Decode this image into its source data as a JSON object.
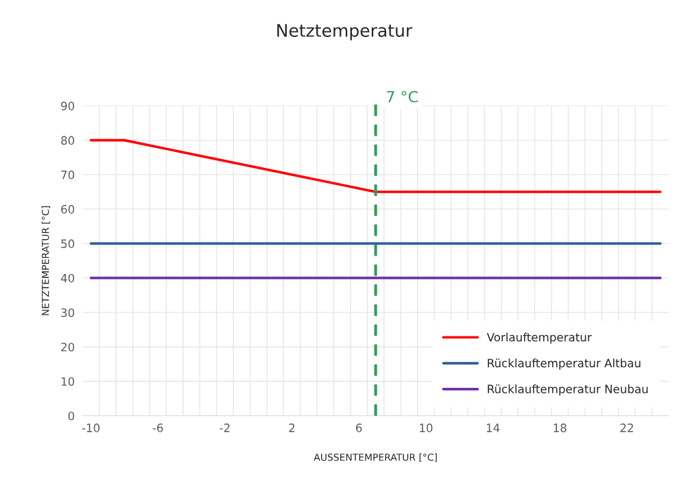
{
  "chart_data": {
    "type": "line",
    "title": "Netztemperatur",
    "xlabel": "AUSSENTEMPERATUR [°C]",
    "ylabel": "NETZTEMPERATUR [°C]",
    "series": [
      {
        "name": "Vorlauftemperatur",
        "color": "#ff0000",
        "x": [
          -10,
          -8,
          7,
          24
        ],
        "values": [
          80,
          80,
          65,
          65
        ]
      },
      {
        "name": "Rücklauftemperatur Altbau",
        "color": "#2f5f98",
        "x": [
          -10,
          24
        ],
        "values": [
          50,
          50
        ]
      },
      {
        "name": "Rücklauftemperatur Neubau",
        "color": "#7030a0",
        "x": [
          -10,
          24
        ],
        "values": [
          40,
          40
        ]
      }
    ],
    "xlim": [
      -10.5,
      24.5
    ],
    "xticks": [
      -10,
      -6,
      -2,
      2,
      6,
      10,
      14,
      18,
      22,
      {
        "value": -9.5,
        "label": null
      },
      {
        "value": -8.5,
        "label": null
      },
      {
        "value": -7.5,
        "label": null
      },
      {
        "value": -6.5,
        "label": null
      },
      {
        "value": -5.5,
        "label": null
      },
      {
        "value": -4.5,
        "label": null
      },
      {
        "value": -3.5,
        "label": null
      },
      {
        "value": -2.5,
        "label": null
      },
      {
        "value": -1.5,
        "label": null
      },
      {
        "value": -0.5,
        "label": null
      },
      {
        "value": 0.5,
        "label": null
      },
      {
        "value": 1.5,
        "label": null
      },
      {
        "value": 2.5,
        "label": null
      },
      {
        "value": 3.5,
        "label": null
      },
      {
        "value": 4.5,
        "label": null
      },
      {
        "value": 5.5,
        "label": null
      },
      {
        "value": 6.5,
        "label": null
      },
      {
        "value": 7.5,
        "label": null
      },
      {
        "value": 8.5,
        "label": null
      },
      {
        "value": 9.5,
        "label": null
      },
      {
        "value": 10.5,
        "label": null
      },
      {
        "value": 11.5,
        "label": null
      },
      {
        "value": 12.5,
        "label": null
      },
      {
        "value": 13.5,
        "label": null
      },
      {
        "value": 14.5,
        "label": null
      },
      {
        "value": 15.5,
        "label": null
      },
      {
        "value": 16.5,
        "label": null
      },
      {
        "value": 17.5,
        "label": null
      },
      {
        "value": 18.5,
        "label": null
      },
      {
        "value": 19.5,
        "label": null
      },
      {
        "value": 20.5,
        "label": null
      },
      {
        "value": 21.5,
        "label": null
      },
      {
        "value": 22.5,
        "label": null
      },
      {
        "value": 23.5,
        "label": null
      }
    ],
    "ylim": [
      0,
      90
    ],
    "yticks": [
      0,
      10,
      20,
      30,
      40,
      50,
      60,
      70,
      80,
      90
    ],
    "grid": true,
    "legend": "bottom right",
    "line_style": "solid",
    "marker": "none",
    "ref_lines": [
      {
        "axis": "x",
        "value": 7,
        "label": "7 °C",
        "color": "#2e9e5e",
        "line_style": "dashed"
      }
    ]
  }
}
